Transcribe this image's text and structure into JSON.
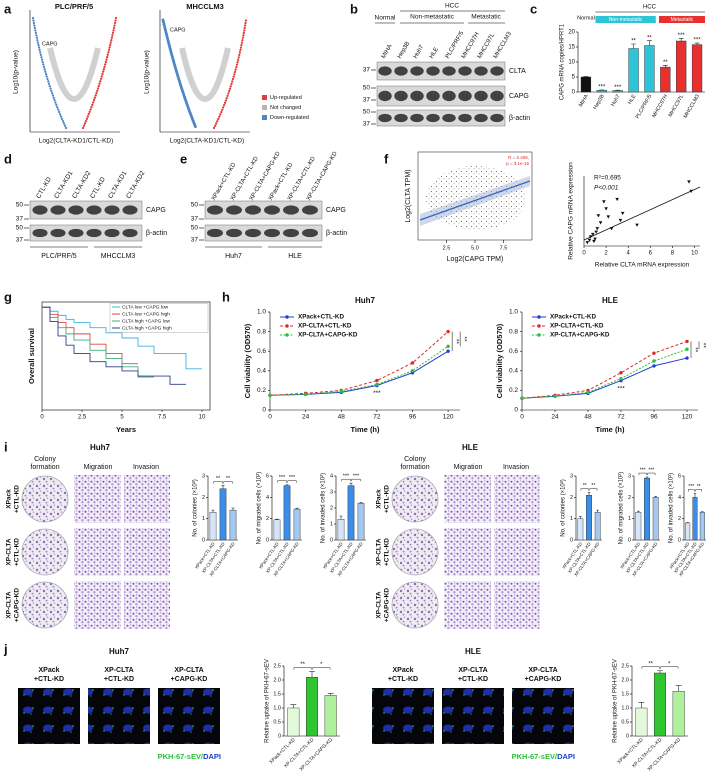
{
  "panel_labels": [
    "a",
    "b",
    "c",
    "d",
    "e",
    "f",
    "g",
    "h",
    "i",
    "j"
  ],
  "a": {
    "titles": [
      "PLC/PRF/5",
      "MHCCLM3"
    ],
    "annotation": "CAPG",
    "y_label": "Log10(p-value)",
    "x_label": "Log2(CLTA-KD1/CTL-KD)",
    "legend": [
      {
        "name": "Up-regulated",
        "color": "#e23b3b"
      },
      {
        "name": "Not changed",
        "color": "#b5b5b5"
      },
      {
        "name": "Down-regulated",
        "color": "#4f86c6"
      }
    ]
  },
  "b": {
    "groups": {
      "normal": "Normal",
      "hcc": "HCC",
      "non_metastatic": "Non-metastatic",
      "metastatic": "Metastatic"
    },
    "lanes": [
      "MIHA",
      "Hep3B",
      "Huh7",
      "HLE",
      "PLC/PRF/5",
      "MHCC97H",
      "MHCC97L",
      "MHCCLM3"
    ],
    "markers": [
      "37",
      "50",
      "37",
      "50",
      "37"
    ],
    "proteins": [
      "CLTA",
      "CAPG",
      "β-actin"
    ]
  },
  "d": {
    "lanes": [
      "CTL-KD",
      "CLTA-KD1",
      "CLTA-KD2",
      "CTL-KD",
      "CLTA-KD1",
      "CLTA-KD2"
    ],
    "markers": [
      "50",
      "37",
      "50",
      "37"
    ],
    "proteins": [
      "CAPG",
      "β-actin"
    ],
    "groups": [
      "PLC/PRF/5",
      "MHCCLM3"
    ]
  },
  "e": {
    "lanes": [
      "XPack+CTL-KD",
      "XP-CLTA+CTL-KD",
      "XP-CLTA+CAPG-KD",
      "XPack+CTL-KD",
      "XP-CLTA+CTL-KD",
      "XP-CLTA+CAPG-KD"
    ],
    "markers": [
      "50",
      "37",
      "50",
      "37"
    ],
    "proteins": [
      "CAPG",
      "β-actin"
    ],
    "groups": [
      "Huh7",
      "HLE"
    ]
  },
  "f_left": {
    "y_label": "Log2(CLTA TPM)",
    "x_label": "Log2(CAPG TPM)",
    "annotation": [
      "R = 0.406,",
      "p = 3.1e-16"
    ],
    "xlim": [
      0,
      10
    ],
    "xticks": [
      2.5,
      {
        "value": 5,
        "label": "5.0"
      },
      7.5
    ]
  },
  "i": {
    "panels": [
      {
        "title": "Huh7",
        "columns": [
          [
            "Colony",
            "formation"
          ],
          [
            "Migration"
          ],
          [
            "Invasion"
          ]
        ],
        "rows": [
          [
            "XPack",
            "+CTL-KD"
          ],
          [
            "XP-CLTA",
            "+CTL-KD"
          ],
          [
            "XP-CLTA",
            "+CAPG-KD"
          ]
        ]
      },
      {
        "title": "HLE",
        "columns": [
          [
            "Colony",
            "formation"
          ],
          [
            "Migration"
          ],
          [
            "Invasion"
          ]
        ],
        "rows": [
          [
            "XPack",
            "+CTL-KD"
          ],
          [
            "XP-CLTA",
            "+CTL-KD"
          ],
          [
            "XP-CLTA",
            "+CAPG-KD"
          ]
        ]
      }
    ]
  },
  "j": {
    "panels": [
      {
        "title": "Huh7",
        "labels": [
          [
            "XPack",
            "+CTL-KD"
          ],
          [
            "XP-CLTA",
            "+CTL-KD"
          ],
          [
            "XP-CLTA",
            "+CAPG-KD"
          ]
        ]
      },
      {
        "title": "HLE",
        "labels": [
          [
            "XPack",
            "+CTL-KD"
          ],
          [
            "XP-CLTA",
            "+CTL-KD"
          ],
          [
            "XP-CLTA",
            "+CAPG-KD"
          ]
        ]
      }
    ],
    "caption": {
      "green": "PKH-67-sEV",
      "slash": "/",
      "blue": "DAPI"
    }
  },
  "chart_data": [
    {
      "type": "bar",
      "y_label": "CAPG mRNA copies/HPRT1",
      "categories": [
        "MIHA",
        "Hep3B",
        "Huh7",
        "HLE",
        "PLC/PRF/5",
        "MHCC97H",
        "MHCC97L",
        "MHCCLM3"
      ],
      "values": [
        5.0,
        0.6,
        0.5,
        14.5,
        15.5,
        8.3,
        17.0,
        15.8
      ],
      "errors": [
        0.2,
        0.1,
        0.1,
        1.5,
        1.6,
        0.6,
        0.9,
        0.5
      ],
      "colors": [
        "#111111",
        "#2ec4d8",
        "#2ec4d8",
        "#2ec4d8",
        "#2ec4d8",
        "#e8312f",
        "#e8312f",
        "#e8312f"
      ],
      "ylim": [
        0,
        20
      ],
      "yticks": [
        0,
        5,
        10,
        15,
        20
      ],
      "bar_stars": [
        null,
        "***",
        "***",
        "**",
        "**",
        "**",
        "***",
        "***"
      ],
      "groups": {
        "normal": "Normal",
        "hcc": "HCC",
        "non_metastatic": "Non-metastatic",
        "metastatic": "Metastatic"
      }
    },
    {
      "type": "scatter",
      "x_label": "Relative CLTA mRNA expression",
      "y_label": "Relative CAPG mRNA expression",
      "x": [
        0.3,
        0.5,
        0.6,
        0.8,
        1.0,
        1.1,
        1.2,
        1.5,
        1.8,
        2.0,
        2.2,
        2.5,
        3.0,
        3.3,
        3.5,
        4.8,
        9.5,
        9.7,
        0.9,
        1.3
      ],
      "values": [
        0.3,
        0.5,
        0.8,
        1.0,
        0.6,
        1.2,
        1.5,
        2.0,
        3.8,
        3.2,
        2.5,
        1.5,
        4.0,
        2.2,
        2.8,
        1.8,
        5.5,
        4.7,
        0.4,
        2.6
      ],
      "xlim": [
        0,
        10.5
      ],
      "xticks": [
        0,
        2,
        4,
        6,
        8,
        10
      ],
      "ylim": [
        0,
        6
      ],
      "annotations": [
        "R²=0.695",
        "P<0.001"
      ],
      "color": "#111111"
    },
    {
      "type": "km",
      "y_label": "Overall survival",
      "x_label": "Years",
      "x": [
        0,
        0.5,
        1,
        1.5,
        2,
        3,
        4,
        5,
        6,
        7,
        8,
        9,
        10
      ],
      "xlim": [
        0,
        10.5
      ],
      "xticks": [
        0,
        2.5,
        5,
        7.5,
        10
      ],
      "ylim": [
        0,
        1.05
      ],
      "series": [
        {
          "name": "CLTA low +CAPG low",
          "color": "#3cb4e5",
          "values": [
            1,
            0.96,
            0.92,
            0.88,
            0.85,
            0.8,
            0.75,
            0.7,
            0.62,
            0.55,
            0.55,
            0.4,
            0.4
          ]
        },
        {
          "name": "CLTA low +CAPG high",
          "color": "#e8433c",
          "values": [
            1,
            0.93,
            0.85,
            0.8,
            0.74,
            0.64,
            0.55,
            0.45,
            0.45,
            null,
            null,
            null,
            null
          ]
        },
        {
          "name": "CLTA high +CAPG low",
          "color": "#3dae7e",
          "values": [
            1,
            0.9,
            0.8,
            0.74,
            0.68,
            0.58,
            0.5,
            0.42,
            0.32,
            0.32,
            null,
            null,
            null
          ]
        },
        {
          "name": "CLTA high +CAPG high",
          "color": "#2d3e8c",
          "values": [
            1,
            0.86,
            0.72,
            0.63,
            0.55,
            0.47,
            0.42,
            0.38,
            0.33,
            0.33,
            0.25,
            0.25,
            null
          ]
        }
      ]
    },
    {
      "type": "line",
      "title": "Huh7",
      "y_label": "Cell viability (OD570)",
      "x_label": "Time (h)",
      "x": [
        0,
        24,
        48,
        72,
        96,
        120
      ],
      "xlim": [
        0,
        128
      ],
      "xticks": [
        0,
        24,
        48,
        72,
        96,
        120
      ],
      "ylim": [
        0,
        1
      ],
      "yticks": [
        0,
        0.2,
        0.4,
        0.6,
        0.8,
        {
          "value": 1,
          "label": "1.0"
        }
      ],
      "series": [
        {
          "name": "XPack+CTL-KD",
          "color": "#1f3fcf",
          "values": [
            0.15,
            0.16,
            0.18,
            0.25,
            0.38,
            0.6
          ]
        },
        {
          "name": "XP-CLTA+CTL-KD",
          "color": "#e02828",
          "values": [
            0.15,
            0.17,
            0.2,
            0.3,
            0.48,
            0.8
          ]
        },
        {
          "name": "XP-CLTA+CAPG-KD",
          "color": "#2fbf3a",
          "values": [
            0.15,
            0.16,
            0.19,
            0.26,
            0.4,
            0.65
          ]
        }
      ],
      "annotations": [
        "***",
        "**",
        "**"
      ]
    },
    {
      "type": "line",
      "title": "HLE",
      "y_label": "Cell viability (OD570)",
      "x_label": "Time (h)",
      "x": [
        0,
        24,
        48,
        72,
        96,
        120
      ],
      "xlim": [
        0,
        128
      ],
      "xticks": [
        0,
        24,
        48,
        72,
        96,
        120
      ],
      "ylim": [
        0,
        1
      ],
      "yticks": [
        0,
        0.2,
        0.4,
        0.6,
        0.8,
        {
          "value": 1,
          "label": "1.0"
        }
      ],
      "series": [
        {
          "name": "XPack+CTL-KD",
          "color": "#1f3fcf",
          "values": [
            0.12,
            0.14,
            0.17,
            0.3,
            0.45,
            0.53
          ]
        },
        {
          "name": "XP-CLTA+CTL-KD",
          "color": "#e02828",
          "values": [
            0.12,
            0.15,
            0.2,
            0.38,
            0.58,
            0.7
          ]
        },
        {
          "name": "XP-CLTA+CAPG-KD",
          "color": "#2fbf3a",
          "values": [
            0.12,
            0.14,
            0.18,
            0.32,
            0.5,
            0.62
          ]
        }
      ],
      "annotations": [
        "***",
        "**",
        "**"
      ]
    },
    {
      "type": "bar",
      "y_label": "No. of colonies (×10²)",
      "categories": [
        "XPack+CTL-KD",
        "XP-CLTA+CTL-KD",
        "XP-CLTA+CAPG-KD"
      ],
      "values": [
        1.3,
        2.4,
        1.4
      ],
      "errors": [
        0.1,
        0.15,
        0.1
      ],
      "colors": [
        "#d5e6fa",
        "#3b8ee8",
        "#a4c8f2"
      ],
      "ylim": [
        0,
        3
      ],
      "yticks": [
        0,
        1,
        2,
        3
      ],
      "brackets": [
        "**",
        "**"
      ]
    },
    {
      "type": "bar",
      "y_label": "No. of migrated cells (×10²)",
      "categories": [
        "XPack+CTL-KD",
        "XP-CLTA+CTL-KD",
        "XP-CLTA+CAPG-KD"
      ],
      "values": [
        1.9,
        5.1,
        2.9
      ],
      "errors": [
        0.05,
        0.08,
        0.08
      ],
      "colors": [
        "#d5e6fa",
        "#3b8ee8",
        "#a4c8f2"
      ],
      "ylim": [
        0,
        6
      ],
      "yticks": [
        0,
        2,
        4,
        6
      ],
      "brackets": [
        "***",
        "***"
      ]
    },
    {
      "type": "bar",
      "y_label": "No. of invaded cells (×10²)",
      "categories": [
        "XPack+CTL-KD",
        "XP-CLTA+CTL-KD",
        "XP-CLTA+CAPG-KD"
      ],
      "values": [
        1.3,
        3.4,
        2.3
      ],
      "errors": [
        0.2,
        0.15,
        0.05
      ],
      "colors": [
        "#d5e6fa",
        "#3b8ee8",
        "#a4c8f2"
      ],
      "ylim": [
        0,
        4
      ],
      "yticks": [
        0,
        1,
        2,
        3,
        4
      ],
      "brackets": [
        "***",
        "***"
      ]
    },
    {
      "type": "bar",
      "y_label": "No. of colonies (×10²)",
      "categories": [
        "XPack+CTL-KD",
        "XP-CLTA+CTL-KD",
        "XP-CLTA+CAPG-KD"
      ],
      "values": [
        1.0,
        2.1,
        1.3
      ],
      "errors": [
        0.1,
        0.12,
        0.1
      ],
      "colors": [
        "#d5e6fa",
        "#3b8ee8",
        "#a4c8f2"
      ],
      "ylim": [
        0,
        3
      ],
      "yticks": [
        0,
        1,
        2,
        3
      ],
      "brackets": [
        "**",
        "**"
      ]
    },
    {
      "type": "bar",
      "y_label": "No. of migrated cells (×10²)",
      "categories": [
        "XPack+CTL-KD",
        "XP-CLTA+CTL-KD",
        "XP-CLTA+CAPG-KD"
      ],
      "values": [
        1.3,
        2.9,
        2.0
      ],
      "errors": [
        0.05,
        0.05,
        0.04
      ],
      "colors": [
        "#d5e6fa",
        "#3b8ee8",
        "#a4c8f2"
      ],
      "ylim": [
        0,
        3
      ],
      "yticks": [
        0,
        1,
        2,
        3
      ],
      "brackets": [
        "***",
        "***"
      ]
    },
    {
      "type": "bar",
      "y_label": "No. of invaded cells (×10²)",
      "categories": [
        "XPack+CTL-KD",
        "XP-CLTA+CTL-KD",
        "XP-CLTA+CAPG-KD"
      ],
      "values": [
        1.6,
        4.0,
        2.6
      ],
      "errors": [
        0.05,
        0.35,
        0.05
      ],
      "colors": [
        "#d5e6fa",
        "#3b8ee8",
        "#a4c8f2"
      ],
      "ylim": [
        0,
        6
      ],
      "yticks": [
        0,
        2,
        4,
        6
      ],
      "brackets": [
        "***",
        "**"
      ]
    },
    {
      "type": "bar",
      "y_label": "Relative uptake of PKH-67-sEV",
      "categories": [
        "XPack+CTL-KD",
        "XP-CLTA+CTL-KD",
        "XP-CLTA+CAPG-KD"
      ],
      "values": [
        1.0,
        2.1,
        1.45
      ],
      "errors": [
        0.12,
        0.2,
        0.07
      ],
      "colors": [
        "#e4f8dc",
        "#2ec52e",
        "#aef09b"
      ],
      "ylim": [
        0,
        2.5
      ],
      "yticks": [
        0,
        0.5,
        {
          "value": 1,
          "label": "1.0"
        },
        1.5,
        {
          "value": 2,
          "label": "2.0"
        },
        2.5
      ],
      "brackets": [
        "**",
        "*"
      ]
    },
    {
      "type": "bar",
      "y_label": "Relative uptake of PKH-67-sEV",
      "categories": [
        "XPack+CTL-KD",
        "XP-CLTA+CTL-KD",
        "XP-CLTA+CAPG-KD"
      ],
      "values": [
        1.0,
        2.25,
        1.6
      ],
      "errors": [
        0.2,
        0.08,
        0.2
      ],
      "colors": [
        "#e4f8dc",
        "#2ec52e",
        "#aef09b"
      ],
      "ylim": [
        0,
        2.5
      ],
      "yticks": [
        0,
        0.5,
        {
          "value": 1,
          "label": "1.0"
        },
        1.5,
        {
          "value": 2,
          "label": "2.0"
        },
        2.5
      ],
      "brackets": [
        "**",
        "*"
      ]
    }
  ]
}
